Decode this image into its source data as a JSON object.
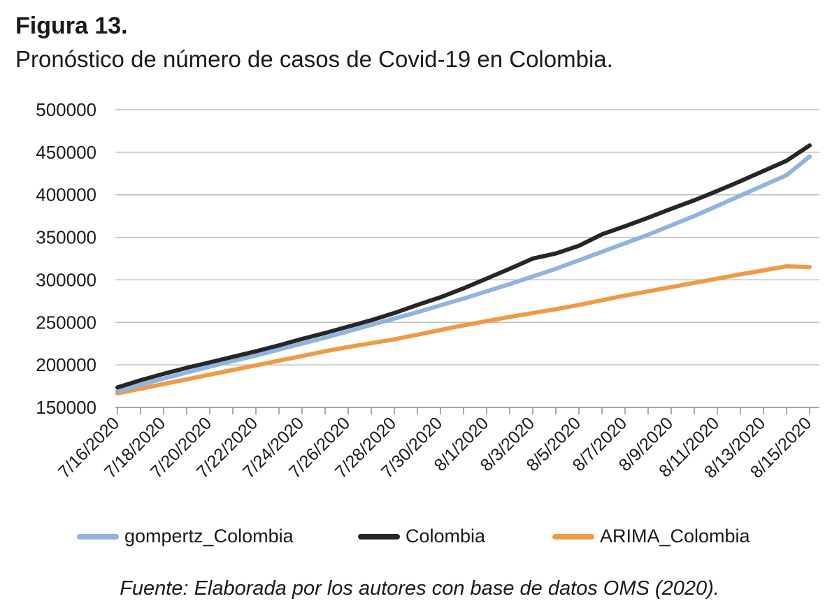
{
  "figure": {
    "label": "Figura 13.",
    "title": "Pronóstico de número de casos de Covid-19 en Colombia.",
    "source": "Fuente: Elaborada por los autores con base de datos OMS (2020)."
  },
  "colors": {
    "gompertz": "#8fb4e0",
    "colombia": "#262626",
    "arima": "#ef9a45",
    "grid": "#bfbfbf"
  },
  "chart_data": {
    "type": "line",
    "title": "",
    "xlabel": "",
    "ylabel": "",
    "ylim": [
      150000,
      500000
    ],
    "yticks": [
      150000,
      200000,
      250000,
      300000,
      350000,
      400000,
      450000,
      500000
    ],
    "x": [
      "7/16/2020",
      "7/17/2020",
      "7/18/2020",
      "7/19/2020",
      "7/20/2020",
      "7/21/2020",
      "7/22/2020",
      "7/23/2020",
      "7/24/2020",
      "7/25/2020",
      "7/26/2020",
      "7/27/2020",
      "7/28/2020",
      "7/29/2020",
      "7/30/2020",
      "7/31/2020",
      "8/1/2020",
      "8/2/2020",
      "8/3/2020",
      "8/4/2020",
      "8/5/2020",
      "8/6/2020",
      "8/7/2020",
      "8/8/2020",
      "8/9/2020",
      "8/10/2020",
      "8/11/2020",
      "8/12/2020",
      "8/13/2020",
      "8/14/2020",
      "8/15/2020"
    ],
    "xtick_labels": [
      "7/16/2020",
      "7/18/2020",
      "7/20/2020",
      "7/22/2020",
      "7/24/2020",
      "7/26/2020",
      "7/28/2020",
      "7/30/2020",
      "8/1/2020",
      "8/3/2020",
      "8/5/2020",
      "8/7/2020",
      "8/9/2020",
      "8/11/2020",
      "8/13/2020",
      "8/15/2020"
    ],
    "grid": true,
    "legend_position": "bottom",
    "series": [
      {
        "name": "gompertz_Colombia",
        "color_key": "gompertz",
        "values": [
          169000,
          176500,
          184000,
          191000,
          198000,
          204500,
          211000,
          218000,
          225000,
          232000,
          239500,
          247000,
          254500,
          262000,
          270000,
          278000,
          286500,
          295000,
          304000,
          313000,
          323000,
          333000,
          343000,
          353000,
          364000,
          375000,
          387000,
          399000,
          411000,
          423000,
          445000
        ]
      },
      {
        "name": "Colombia",
        "color_key": "colombia",
        "values": [
          173500,
          182000,
          189500,
          196500,
          203000,
          209500,
          216000,
          223000,
          230500,
          237500,
          245000,
          252500,
          261000,
          270500,
          279500,
          290000,
          301500,
          313000,
          325000,
          331000,
          340000,
          353500,
          363000,
          373000,
          383500,
          393500,
          404500,
          416000,
          428000,
          440000,
          458000
        ]
      },
      {
        "name": "ARIMA_Colombia",
        "color_key": "arima",
        "values": [
          166500,
          172000,
          177500,
          183000,
          188500,
          194000,
          199500,
          205000,
          210500,
          216000,
          221000,
          225500,
          230000,
          235500,
          241000,
          246500,
          251500,
          256500,
          261000,
          265500,
          270500,
          276000,
          281500,
          286500,
          291500,
          296500,
          301500,
          306500,
          311000,
          316000,
          315000
        ]
      }
    ]
  }
}
